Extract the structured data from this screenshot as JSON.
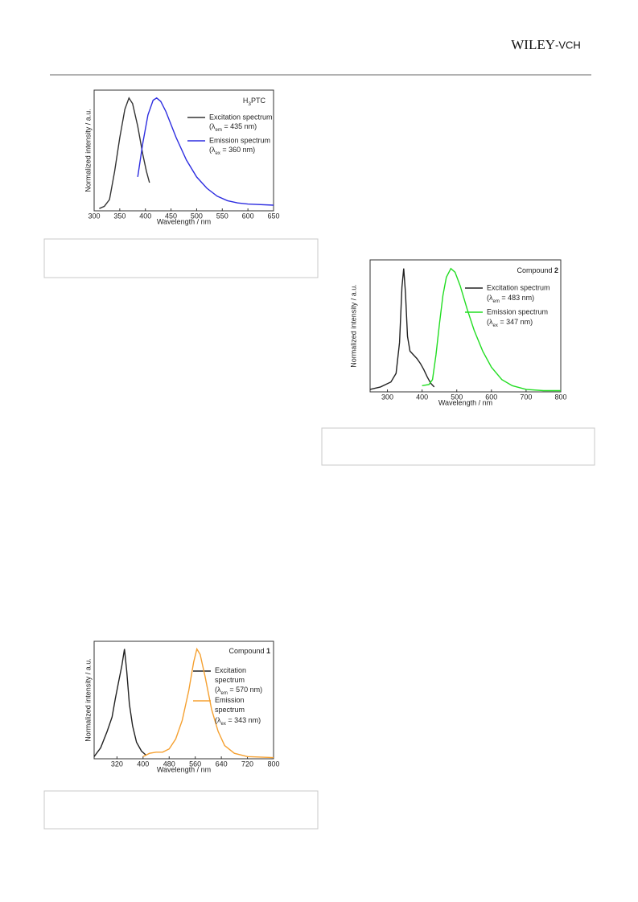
{
  "header": {
    "logo": "WILEY",
    "logo_suffix": "-VCH"
  },
  "chart_data": [
    {
      "type": "line",
      "title_parts": [
        {
          "text": "H"
        },
        {
          "text": "3",
          "sub": true
        },
        {
          "text": "PTC"
        }
      ],
      "x_label": "Wavelength / nm",
      "y_label": "Normalized intensity / a.u.",
      "xlim": [
        300,
        650
      ],
      "xticks": [
        300,
        350,
        400,
        450,
        500,
        550,
        600,
        650
      ],
      "ylim": [
        0,
        1.07
      ],
      "series": [
        {
          "name": "Excitation spectrum",
          "color": "#333333",
          "condition": {
            "open": "(λ",
            "sub": "em",
            "close": " = 435 nm)"
          },
          "x": [
            310,
            320,
            330,
            340,
            350,
            360,
            368,
            375,
            385,
            395,
            402,
            408
          ],
          "values": [
            0.02,
            0.04,
            0.1,
            0.35,
            0.65,
            0.9,
            1.0,
            0.95,
            0.75,
            0.5,
            0.35,
            0.25
          ]
        },
        {
          "name": "Emission spectrum",
          "color": "#2d2de0",
          "condition": {
            "open": "(λ",
            "sub": "ex",
            "close": " = 360 nm)"
          },
          "x": [
            385,
            395,
            405,
            415,
            422,
            430,
            440,
            460,
            480,
            500,
            520,
            540,
            560,
            580,
            600,
            650
          ],
          "values": [
            0.3,
            0.6,
            0.85,
            0.98,
            1.0,
            0.97,
            0.88,
            0.65,
            0.45,
            0.3,
            0.2,
            0.13,
            0.09,
            0.07,
            0.06,
            0.05
          ]
        }
      ]
    },
    {
      "type": "line",
      "title_parts": [
        {
          "text": "Compound "
        },
        {
          "text": "2",
          "bold": true
        }
      ],
      "x_label": "Wavelength / nm",
      "y_label": "Normalized intensity / a.u.",
      "xlim": [
        250,
        800
      ],
      "xticks": [
        300,
        400,
        500,
        600,
        700,
        800
      ],
      "ylim": [
        0,
        1.07
      ],
      "series": [
        {
          "name": "Excitation spectrum",
          "color": "#222222",
          "condition": {
            "open": "(λ",
            "sub": "em",
            "close": " = 483 nm)"
          },
          "x": [
            250,
            280,
            310,
            325,
            335,
            342,
            347,
            352,
            358,
            365,
            375,
            385,
            395,
            405,
            415,
            425,
            435
          ],
          "values": [
            0.02,
            0.04,
            0.08,
            0.15,
            0.4,
            0.85,
            1.0,
            0.8,
            0.45,
            0.33,
            0.3,
            0.27,
            0.23,
            0.18,
            0.12,
            0.07,
            0.04
          ]
        },
        {
          "name": "Emission spectrum",
          "color": "#22dd22",
          "condition": {
            "open": "(λ",
            "sub": "ex",
            "close": " = 347 nm)"
          },
          "x": [
            400,
            420,
            430,
            440,
            450,
            460,
            470,
            483,
            495,
            510,
            530,
            550,
            575,
            600,
            630,
            660,
            700,
            750,
            800
          ],
          "values": [
            0.05,
            0.06,
            0.1,
            0.3,
            0.55,
            0.78,
            0.93,
            1.0,
            0.97,
            0.86,
            0.67,
            0.5,
            0.33,
            0.2,
            0.1,
            0.05,
            0.02,
            0.01,
            0.01
          ]
        }
      ]
    },
    {
      "type": "line",
      "title_parts": [
        {
          "text": "Compound "
        },
        {
          "text": "1",
          "bold": true
        }
      ],
      "x_label": "Wavelength / nm",
      "y_label": "Normalized intensity / a.u.",
      "xlim": [
        250,
        800
      ],
      "xticks": [
        320,
        400,
        480,
        560,
        640,
        720,
        800
      ],
      "ylim": [
        0,
        1.07
      ],
      "series": [
        {
          "name": "Excitation spectrum",
          "color": "#222222",
          "condition": {
            "open": "(λ",
            "sub": "em",
            "close": " = 570 nm)"
          },
          "x": [
            250,
            270,
            290,
            305,
            315,
            325,
            335,
            343,
            350,
            358,
            368,
            380,
            395,
            410
          ],
          "values": [
            0.02,
            0.1,
            0.25,
            0.38,
            0.55,
            0.7,
            0.85,
            1.0,
            0.8,
            0.5,
            0.3,
            0.15,
            0.07,
            0.03
          ]
        },
        {
          "name": "Emission spectrum",
          "color": "#f5a030",
          "condition": {
            "open": "(λ",
            "sub": "ex",
            "close": " = 343 nm)"
          },
          "x": [
            400,
            420,
            440,
            460,
            480,
            500,
            520,
            540,
            555,
            565,
            575,
            590,
            610,
            630,
            650,
            680,
            720,
            800
          ],
          "values": [
            0.02,
            0.05,
            0.06,
            0.06,
            0.09,
            0.18,
            0.35,
            0.62,
            0.88,
            1.0,
            0.95,
            0.75,
            0.45,
            0.25,
            0.12,
            0.05,
            0.02,
            0.01
          ]
        }
      ]
    }
  ]
}
